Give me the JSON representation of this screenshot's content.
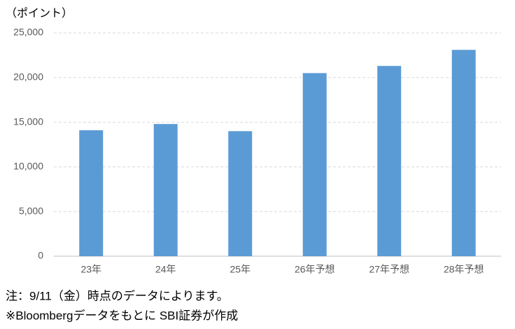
{
  "chart_data": {
    "type": "bar",
    "y_label": "（ポイント）",
    "categories": [
      "23年",
      "24年",
      "25年",
      "26年予想",
      "27年予想",
      "28年予想"
    ],
    "values": [
      14100,
      14800,
      14000,
      20500,
      21300,
      23100
    ],
    "color": "#5b9bd5",
    "ylim": [
      0,
      25000
    ],
    "yticks": [
      0,
      {
        "value": 5000,
        "label": "5,000"
      },
      {
        "value": 10000,
        "label": "10,000"
      },
      {
        "value": 15000,
        "label": "15,000"
      },
      {
        "value": 20000,
        "label": "20,000"
      },
      {
        "value": 25000,
        "label": "25,000"
      }
    ],
    "grid": true,
    "notes": [
      "注：9/11（金）時点のデータによります。",
      "※Bloombergデータをもとに SBI証券が作成"
    ]
  }
}
